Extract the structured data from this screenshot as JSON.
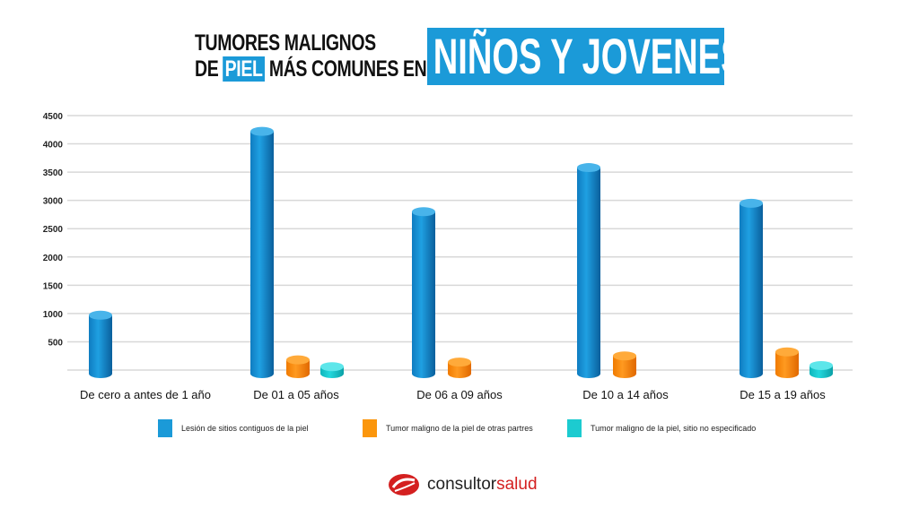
{
  "title": {
    "line1": "TUMORES MALIGNOS",
    "line2_pre": "DE",
    "line2_highlight": "PIEL",
    "line2_post": "MÁS COMUNES EN",
    "highlight_box": "NIÑOS Y JOVENES"
  },
  "chart_data": {
    "type": "bar",
    "categories": [
      "De cero a antes de 1 año",
      "De 01 a 05 años",
      "De 06 a 09 años",
      "De 10 a 14 años",
      "De 15 a 19 años"
    ],
    "series": [
      {
        "name": "Lesión de sitios contiguos de la piel",
        "color": "#1b8fd0",
        "values": [
          970,
          4220,
          2800,
          3580,
          2950
        ]
      },
      {
        "name": "Tumor maligno de la piel de otras partres",
        "color": "#f98b0a",
        "values": [
          null,
          180,
          140,
          250,
          320
        ]
      },
      {
        "name": "Tumor maligno de la piel, sitio no especificado",
        "color": "#17c9cf",
        "values": [
          null,
          60,
          null,
          null,
          80
        ]
      }
    ],
    "yticks": [
      500,
      1000,
      1500,
      2000,
      2500,
      3000,
      3500,
      4000,
      4500
    ],
    "ylim": [
      0,
      4500
    ],
    "grid": true,
    "legend_position": "bottom"
  },
  "logo": {
    "text_dark": "consultor",
    "text_red": "salud"
  }
}
